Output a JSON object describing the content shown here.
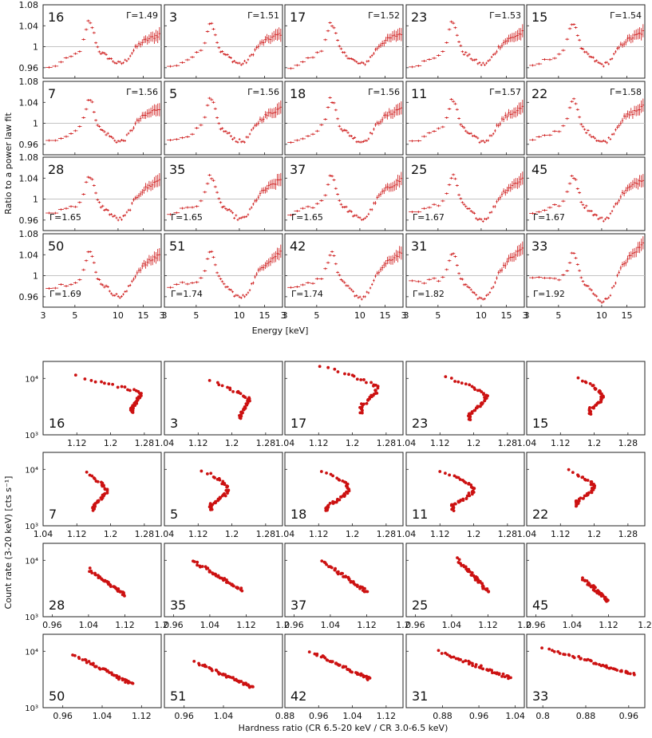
{
  "chart_data": {
    "type": "scatter",
    "colors": {
      "data": "#cc1111",
      "frame": "#222222",
      "refline": "#bbbbbb"
    },
    "top": {
      "description": "Spectral ratio to a power law fit, one panel per observation",
      "ylabel": "Ratio to a power law fit",
      "xlabel": "Energy [keV]",
      "x_scale": "log",
      "xlim": [
        3,
        20
      ],
      "ylim": [
        0.94,
        1.08
      ],
      "xticks": [
        3,
        5,
        10,
        15
      ],
      "yticks": [
        0.96,
        1,
        1.04,
        1.08
      ],
      "ytick_labels": [
        "0.96",
        "1",
        "1.04",
        "1.08"
      ],
      "reference_line": 1,
      "panels": [
        {
          "id": "16",
          "gamma": "Γ=1.49"
        },
        {
          "id": "3",
          "gamma": "Γ=1.51"
        },
        {
          "id": "17",
          "gamma": "Γ=1.52"
        },
        {
          "id": "23",
          "gamma": "Γ=1.53"
        },
        {
          "id": "15",
          "gamma": "Γ=1.54"
        },
        {
          "id": "7",
          "gamma": "Γ=1.56"
        },
        {
          "id": "5",
          "gamma": "Γ=1.56"
        },
        {
          "id": "18",
          "gamma": "Γ=1.56"
        },
        {
          "id": "11",
          "gamma": "Γ=1.57"
        },
        {
          "id": "22",
          "gamma": "Γ=1.58"
        },
        {
          "id": "28",
          "gamma": "Γ=1.65"
        },
        {
          "id": "35",
          "gamma": "Γ=1.65"
        },
        {
          "id": "37",
          "gamma": "Γ=1.65"
        },
        {
          "id": "25",
          "gamma": "Γ=1.67"
        },
        {
          "id": "45",
          "gamma": "Γ=1.67"
        },
        {
          "id": "50",
          "gamma": "Γ=1.69"
        },
        {
          "id": "51",
          "gamma": "Γ=1.74"
        },
        {
          "id": "42",
          "gamma": "Γ=1.74"
        },
        {
          "id": "31",
          "gamma": "Γ=1.82"
        },
        {
          "id": "33",
          "gamma": "Γ=1.92"
        }
      ]
    },
    "bottom": {
      "description": "Count rate vs hardness ratio, one panel per observation",
      "ylabel": "Count rate (3-20 keV) [cts s⁻¹]",
      "xlabel": "Hardness ratio (CR 6.5-20 keV / CR 3.0-6.5 keV)",
      "y_scale": "log",
      "ylim": [
        1000,
        20000
      ],
      "ytick_labels": [
        "10³",
        "10⁴"
      ],
      "rows": [
        {
          "xlim": [
            1.04,
            1.32
          ],
          "xticks": [
            1.04,
            1.12,
            1.2,
            1.28
          ],
          "xtick_labels": [
            "1.04",
            "1.12",
            "1.2",
            "1.28"
          ],
          "first_label": [
            "1.12",
            "1.2",
            "1.28"
          ]
        },
        {
          "xlim": [
            1.04,
            1.32
          ],
          "xticks": [
            1.04,
            1.12,
            1.2,
            1.28
          ],
          "xtick_labels": [
            "1.04",
            "1.12",
            "1.2",
            "1.28"
          ]
        },
        {
          "xlim": [
            0.94,
            1.2
          ],
          "xticks": [
            0.96,
            1.04,
            1.12,
            1.2
          ],
          "xtick_labels": [
            "0.96",
            "1.04",
            "1.12",
            "1.2"
          ]
        },
        {
          "xlim": [
            0.92,
            1.2
          ],
          "xticks": [
            0.96,
            1.04,
            1.12
          ],
          "xtick_labels": [
            "0.96",
            "1.04",
            "1.12"
          ]
        }
      ],
      "row4_xlims": [
        [
          0.92,
          1.16
        ],
        [
          0.92,
          1.16
        ],
        [
          0.88,
          1.16
        ],
        [
          0.8,
          1.06
        ],
        [
          0.77,
          0.99
        ]
      ],
      "row4_xticks": [
        [
          0.96,
          1.04,
          1.12
        ],
        [
          0.96,
          1.04
        ],
        [
          0.88,
          0.96,
          1.04,
          1.12
        ],
        [
          0.88,
          0.96,
          1.04
        ],
        [
          0.8,
          0.88,
          0.96
        ]
      ],
      "row4_xtick_labels": [
        [
          "0.96",
          "1.04",
          "1.12"
        ],
        [
          "0.96",
          "1.04"
        ],
        [
          "0.88",
          "0.96",
          "1.04",
          "1.12"
        ],
        [
          "0.88",
          "0.96",
          "1.04"
        ],
        [
          "0.8",
          "0.88",
          "0.96"
        ]
      ],
      "panels": [
        {
          "id": "16",
          "shape": "arc",
          "hr": [
            1.12,
            1.25,
            1.27
          ],
          "cr": [
            11000,
            2500
          ]
        },
        {
          "id": "3",
          "shape": "arc",
          "hr": [
            1.15,
            1.22,
            1.24
          ],
          "cr": [
            9000,
            1900
          ]
        },
        {
          "id": "17",
          "shape": "arc",
          "hr": [
            1.12,
            1.22,
            1.26
          ],
          "cr": [
            17000,
            2500
          ]
        },
        {
          "id": "23",
          "shape": "arc",
          "hr": [
            1.13,
            1.19,
            1.23
          ],
          "cr": [
            11000,
            1900
          ]
        },
        {
          "id": "15",
          "shape": "arc",
          "hr": [
            1.16,
            1.19,
            1.22
          ],
          "cr": [
            10000,
            2300
          ]
        },
        {
          "id": "7",
          "shape": "arc",
          "hr": [
            1.14,
            1.16,
            1.19
          ],
          "cr": [
            8500,
            1900
          ]
        },
        {
          "id": "5",
          "shape": "arc",
          "hr": [
            1.13,
            1.15,
            1.19
          ],
          "cr": [
            9500,
            1900
          ]
        },
        {
          "id": "18",
          "shape": "arc",
          "hr": [
            1.13,
            1.14,
            1.19
          ],
          "cr": [
            9500,
            1800
          ]
        },
        {
          "id": "11",
          "shape": "arc",
          "hr": [
            1.12,
            1.15,
            1.2
          ],
          "cr": [
            9500,
            1900
          ]
        },
        {
          "id": "22",
          "shape": "arc",
          "hr": [
            1.14,
            1.16,
            1.2
          ],
          "cr": [
            9500,
            2300
          ]
        },
        {
          "id": "28",
          "shape": "diag",
          "hr": [
            1.04,
            1.12
          ],
          "cr": [
            7000,
            2400
          ]
        },
        {
          "id": "35",
          "shape": "diag",
          "hr": [
            1.0,
            1.11
          ],
          "cr": [
            10000,
            3000
          ]
        },
        {
          "id": "37",
          "shape": "diag",
          "hr": [
            1.02,
            1.12
          ],
          "cr": [
            10000,
            2800
          ]
        },
        {
          "id": "25",
          "shape": "diag",
          "hr": [
            1.05,
            1.12
          ],
          "cr": [
            11000,
            2800
          ]
        },
        {
          "id": "45",
          "shape": "diag",
          "hr": [
            1.06,
            1.12
          ],
          "cr": [
            5000,
            1900
          ]
        },
        {
          "id": "50",
          "shape": "diag",
          "hr": [
            0.98,
            1.1
          ],
          "cr": [
            9000,
            2600
          ]
        },
        {
          "id": "51",
          "shape": "diag",
          "hr": [
            0.98,
            1.1
          ],
          "cr": [
            6500,
            2300
          ]
        },
        {
          "id": "42",
          "shape": "diag",
          "hr": [
            0.94,
            1.08
          ],
          "cr": [
            10000,
            3200
          ]
        },
        {
          "id": "31",
          "shape": "diag",
          "hr": [
            0.87,
            1.03
          ],
          "cr": [
            10000,
            3300
          ]
        },
        {
          "id": "33",
          "shape": "diag",
          "hr": [
            0.8,
            0.97
          ],
          "cr": [
            12000,
            3800
          ]
        }
      ]
    }
  }
}
